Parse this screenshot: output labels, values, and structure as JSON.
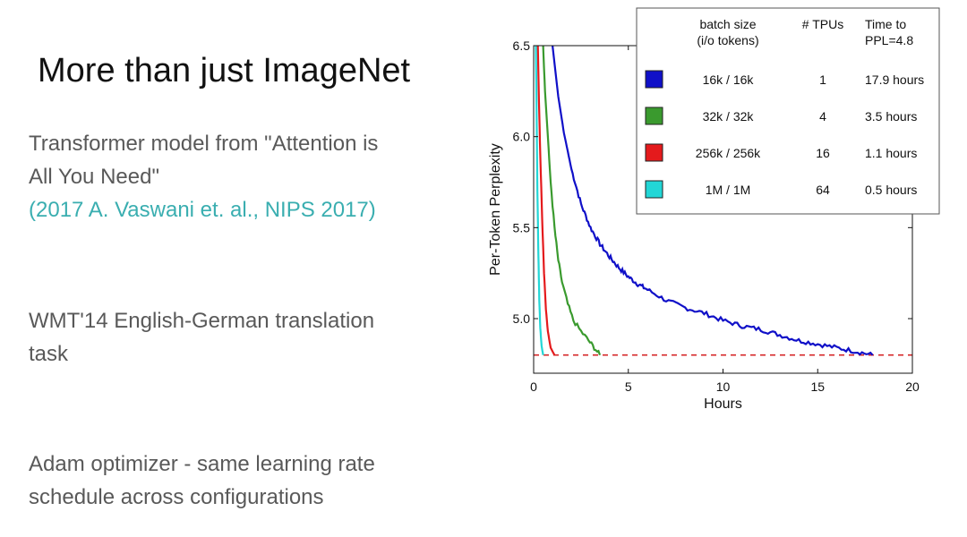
{
  "slide": {
    "title": "More than just ImageNet",
    "paragraph1_line1": "Transformer model from \"Attention is",
    "paragraph1_line2": "All You Need\"",
    "citation": "(2017 A. Vaswani et. al.,  NIPS 2017)",
    "paragraph2_line1": "WMT'14 English-German translation",
    "paragraph2_line2": "task",
    "paragraph3_line1": "Adam optimizer - same learning rate",
    "paragraph3_line2": "schedule across configurations"
  },
  "chart_data": {
    "type": "line",
    "xlabel": "Hours",
    "ylabel": "Per-Token Perplexity",
    "xlim": [
      0,
      20
    ],
    "ylim": [
      4.7,
      6.5
    ],
    "xticks": [
      "0",
      "5",
      "10",
      "15",
      "20"
    ],
    "yticks": [
      "5.0",
      "5.5",
      "6.0",
      "6.5"
    ],
    "target_line": {
      "y": 4.8,
      "color": "#d62728",
      "style": "dashed"
    },
    "legend": {
      "placement": "top-right",
      "headers": [
        "batch size\n(i/o tokens)",
        "# TPUs",
        "Time to\nPPL=4.8"
      ]
    },
    "series": [
      {
        "name": "16k / 16k",
        "tpus": "1",
        "time": "17.9 hours",
        "color": "#1010c8",
        "x": [
          1.0,
          1.3,
          1.6,
          2.0,
          2.5,
          3.0,
          3.5,
          4.0,
          4.5,
          5.0,
          5.5,
          6.0,
          7.0,
          8.0,
          9.0,
          10.0,
          11.0,
          12.0,
          13.0,
          14.0,
          15.0,
          16.0,
          17.0,
          17.9
        ],
        "y": [
          6.5,
          6.22,
          6.02,
          5.82,
          5.63,
          5.5,
          5.41,
          5.34,
          5.28,
          5.23,
          5.19,
          5.16,
          5.1,
          5.06,
          5.03,
          4.99,
          4.96,
          4.94,
          4.91,
          4.88,
          4.86,
          4.84,
          4.82,
          4.8
        ]
      },
      {
        "name": "32k / 32k",
        "tpus": "4",
        "time": "3.5 hours",
        "color": "#3a9a2e",
        "x": [
          0.5,
          0.6,
          0.75,
          0.9,
          1.1,
          1.3,
          1.5,
          1.8,
          2.1,
          2.5,
          2.9,
          3.2,
          3.5
        ],
        "y": [
          6.5,
          6.25,
          6.0,
          5.75,
          5.5,
          5.32,
          5.2,
          5.08,
          4.99,
          4.93,
          4.88,
          4.84,
          4.8
        ]
      },
      {
        "name": "256k / 256k",
        "tpus": "16",
        "time": "1.1 hours",
        "color": "#e41a1c",
        "x": [
          0.22,
          0.28,
          0.35,
          0.45,
          0.55,
          0.65,
          0.75,
          0.9,
          1.1
        ],
        "y": [
          6.5,
          6.2,
          5.9,
          5.55,
          5.25,
          5.05,
          4.93,
          4.84,
          4.8
        ]
      },
      {
        "name": "1M / 1M",
        "tpus": "64",
        "time": "0.5 hours",
        "color": "#22d6d6",
        "x": [
          0.12,
          0.16,
          0.2,
          0.25,
          0.3,
          0.35,
          0.42,
          0.5
        ],
        "y": [
          6.5,
          6.1,
          5.7,
          5.35,
          5.1,
          4.95,
          4.85,
          4.8
        ]
      }
    ]
  }
}
